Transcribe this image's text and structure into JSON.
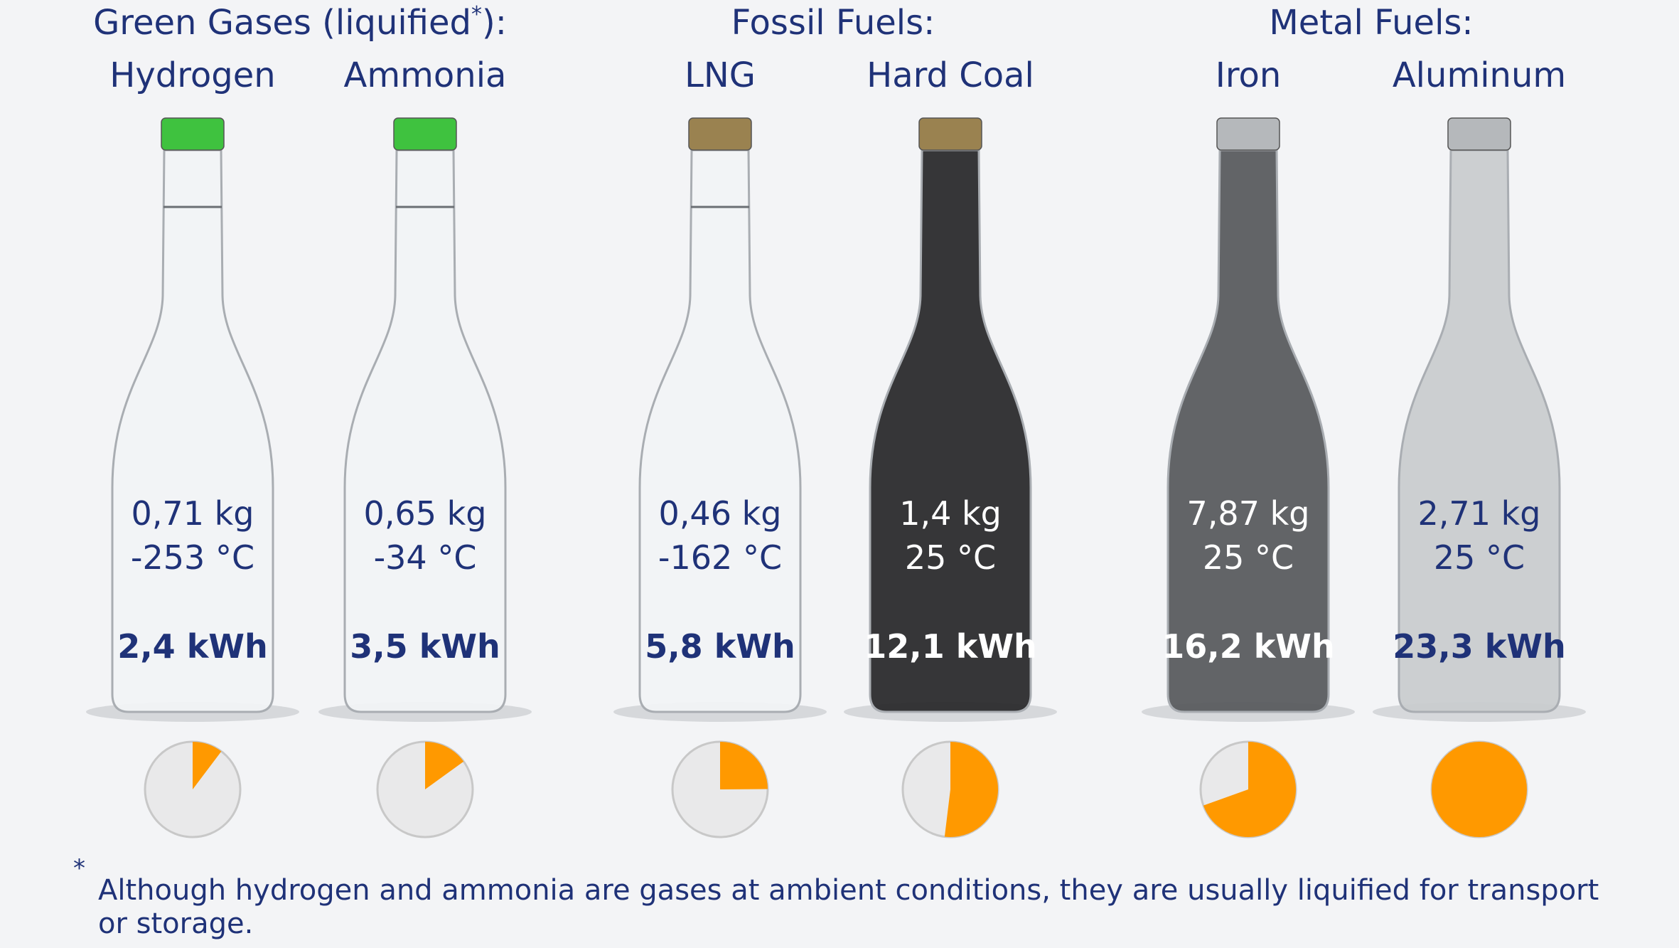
{
  "groups": [
    {
      "title": "Green Gases (liquified",
      "title_mark": "*",
      "title_close": "):",
      "items": [
        {
          "name": "Hydrogen",
          "mass": "0,71 kg",
          "temperature": "-253 °C",
          "energy": {
            "value": 2.4,
            "label": "2,4 kWh"
          },
          "cap_color": "#3fc23f",
          "fill_color": "#f1f3f5",
          "text_color": "#1f3278"
        },
        {
          "name": "Ammonia",
          "mass": "0,65 kg",
          "temperature": "-34 °C",
          "energy": {
            "value": 3.5,
            "label": "3,5 kWh"
          },
          "cap_color": "#3fc23f",
          "fill_color": "#f1f3f5",
          "text_color": "#1f3278"
        }
      ]
    },
    {
      "title": "Fossil Fuels:",
      "items": [
        {
          "name": "LNG",
          "mass": "0,46 kg",
          "temperature": "-162 °C",
          "energy": {
            "value": 5.8,
            "label": "5,8 kWh"
          },
          "cap_color": "#9a8250",
          "fill_color": "#f1f3f5",
          "text_color": "#1f3278"
        },
        {
          "name": "Hard Coal",
          "mass": "1,4 kg",
          "temperature": "25 °C",
          "energy": {
            "value": 12.1,
            "label": "12,1 kWh"
          },
          "cap_color": "#9a8250",
          "fill_color": "#2b2b2d",
          "text_color": "#ffffff"
        }
      ]
    },
    {
      "title": "Metal Fuels:",
      "items": [
        {
          "name": "Iron",
          "mass": "7,87 kg",
          "temperature": "25 °C",
          "energy": {
            "value": 16.2,
            "label": "16,2 kWh"
          },
          "cap_color": "#b5b8bb",
          "fill_color": "#5a5c5f",
          "text_color": "#ffffff"
        },
        {
          "name": "Aluminum",
          "mass": "2,71 kg",
          "temperature": "25 °C",
          "energy": {
            "value": 23.3,
            "label": "23,3 kWh"
          },
          "cap_color": "#b5b8bb",
          "fill_color": "#c9cccf",
          "text_color": "#1f3278"
        }
      ]
    }
  ],
  "footnote": {
    "mark": "*",
    "text_line1": "Although hydrogen and ammonia are gases at ambient conditions, they are usually liquified for transport",
    "text_line2": "or storage."
  },
  "pie_color": "#ff9900"
}
